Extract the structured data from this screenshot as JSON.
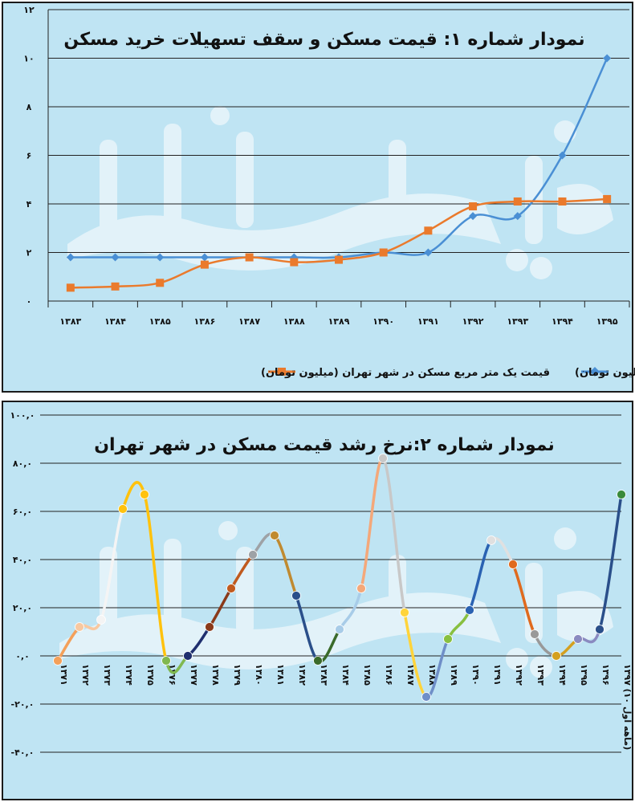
{
  "chart_data": [
    {
      "type": "line",
      "title": "نمودار شماره ۱: قیمت مسکن و سقف تسهیلات خرید مسکن",
      "categories": [
        "۱۳۸۳",
        "۱۳۸۴",
        "۱۳۸۵",
        "۱۳۸۶",
        "۱۳۸۷",
        "۱۳۸۸",
        "۱۳۸۹",
        "۱۳۹۰",
        "۱۳۹۱",
        "۱۳۹۲",
        "۱۳۹۳",
        "۱۳۹۴",
        "۱۳۹۵"
      ],
      "yticks": [
        "۰",
        "۲",
        "۴",
        "۶",
        "۸",
        "۱۰",
        "۱۲"
      ],
      "ylim": [
        0,
        12
      ],
      "grid": true,
      "legend_position": "bottom",
      "series": [
        {
          "name": "مبلغ وام خرید (ده میلیون تومان)",
          "color": "#4a8fd4",
          "marker": "diamond",
          "values": [
            1.8,
            1.8,
            1.8,
            1.8,
            1.8,
            1.8,
            1.8,
            2.0,
            2.0,
            3.5,
            3.5,
            6.0,
            10.0
          ]
        },
        {
          "name": "قیمت یک متر مربع مسکن در شهر تهران (میلیون تومان)",
          "color": "#ea7a2c",
          "marker": "square",
          "values": [
            0.55,
            0.6,
            0.75,
            1.5,
            1.8,
            1.6,
            1.7,
            2.0,
            2.9,
            3.9,
            4.1,
            4.1,
            4.2
          ]
        }
      ]
    },
    {
      "type": "line",
      "title": "نمودار شماره ۲:نرخ رشد قیمت مسکن در شهر تهران",
      "categories": [
        "۱۳۷۱",
        "۱۳۷۲",
        "۱۳۷۳",
        "۱۳۷۴",
        "۱۳۷۵",
        "۱۳۷۶",
        "۱۳۷۷",
        "۱۳۷۸",
        "۱۳۷۹",
        "۱۳۸۰",
        "۱۳۸۱",
        "۱۳۸۲",
        "۱۳۸۳",
        "۱۳۸۴",
        "۱۳۸۵",
        "۱۳۸۶",
        "۱۳۸۷",
        "۱۳۸۸",
        "۱۳۸۹",
        "۱۳۹۰",
        "۱۳۹۱",
        "۱۳۹۲",
        "۱۳۹۳",
        "۱۳۹۴",
        "۱۳۹۵",
        "۱۳۹۶",
        "۱۳۹۷ (۱۰ ماهه اول)"
      ],
      "yticks": [
        "-۴۰,۰",
        "-۲۰,۰",
        "۰,۰",
        "۲۰,۰",
        "۴۰,۰",
        "۶۰,۰",
        "۸۰,۰",
        "۱۰۰,۰"
      ],
      "ylim": [
        -40,
        100
      ],
      "grid": true,
      "values": [
        -2,
        12,
        15,
        61,
        67,
        -2,
        0,
        12,
        28,
        42,
        50,
        25,
        -2,
        11,
        28,
        82,
        18,
        -17,
        7,
        19,
        48,
        38,
        9,
        0,
        7,
        11,
        67
      ],
      "segment_colors": [
        "#f4a05a",
        "#f8c8a0",
        "#f4f4f4",
        "#ffc20e",
        "#ffc20e",
        "#80b850",
        "#1f2f6e",
        "#8a3a1a",
        "#c05a1e",
        "#9ea2a6",
        "#c08a30",
        "#2a4f8a",
        "#3a6a2a",
        "#a8cce8",
        "#f4a87a",
        "#c8c8c8",
        "#ffd43b",
        "#6f8fc8",
        "#88c040",
        "#2a62b2",
        "#e0e0e0",
        "#e06a1e",
        "#999999",
        "#d4a020",
        "#8a8ac0",
        "#2a4f8a",
        "#3a8a3a",
        "#c0e0f0",
        "#f4b890",
        "#d8d8d8"
      ]
    }
  ]
}
